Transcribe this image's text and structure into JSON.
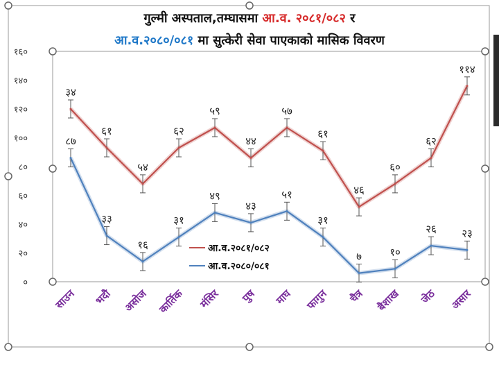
{
  "chart_data": {
    "type": "line",
    "title_line1_black": "गुल्मी अस्पताल,तम्घासमा ",
    "title_line1_red": "आ.व. २०८१/०८२",
    "title_line1_tail": " र",
    "title_line2_blue": "आ.व.२०८०/०८१",
    "title_line2_black": " मा सुत्केरी सेवा पाएकाको मासिक विवरण",
    "categories": [
      "साउन",
      "भदौ",
      "असोज",
      "कार्तिक",
      "मंसिर",
      "पुष",
      "माघ",
      "फागुन",
      "चैत्र",
      "बैशाख",
      "जेठ",
      "असार"
    ],
    "y_ticks": [
      "०",
      "२०",
      "४०",
      "६०",
      "८०",
      "१००",
      "१२०",
      "१४०",
      "१६०"
    ],
    "ylim": [
      0,
      160
    ],
    "series": [
      {
        "name": "आ.व.२०८१/०८२",
        "color": "#c0504d",
        "values": [
          120,
          93,
          68,
          93,
          107,
          86,
          107,
          91,
          52,
          68,
          86,
          136
        ],
        "labels": [
          "३४",
          "६१",
          "५४",
          "६२",
          "५९",
          "४४",
          "५७",
          "६१",
          "४६",
          "६०",
          "६२",
          "११४"
        ]
      },
      {
        "name": "आ.व.२०८०/०८१",
        "color": "#4f81bd",
        "values": [
          86,
          32,
          14,
          31,
          48,
          41,
          49,
          31,
          6,
          9,
          25,
          22
        ],
        "labels": [
          "८७",
          "३३",
          "१६",
          "३१",
          "४९",
          "४३",
          "५१",
          "३१",
          "७",
          "१०",
          "२६",
          "२३"
        ]
      }
    ]
  }
}
